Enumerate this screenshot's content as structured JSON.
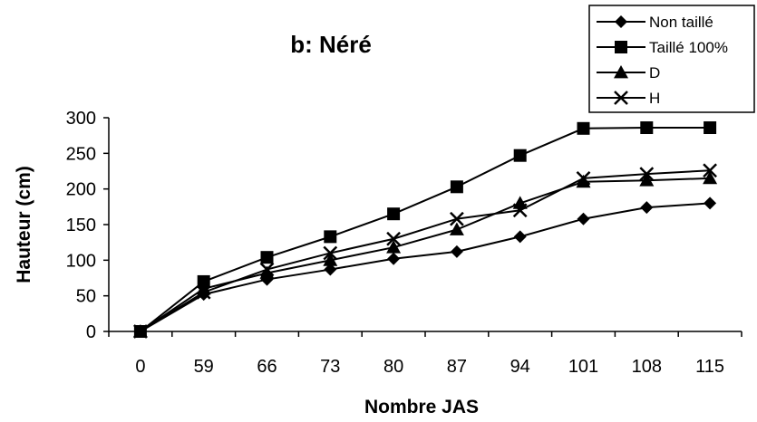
{
  "chart_data": {
    "type": "line",
    "title": "b: Néré",
    "xlabel": "Nombre JAS",
    "ylabel": "Hauteur (cm)",
    "categories": [
      "0",
      "59",
      "66",
      "73",
      "80",
      "87",
      "94",
      "101",
      "108",
      "115"
    ],
    "y_ticks": [
      "0",
      "50",
      "100",
      "150",
      "200",
      "250",
      "300"
    ],
    "ylim": [
      0,
      300
    ],
    "grid": false,
    "legend_position": "top-right",
    "series": [
      {
        "name": "Non taillé",
        "marker": "diamond",
        "values": [
          0,
          52,
          73,
          87,
          102,
          112,
          133,
          158,
          174,
          180
        ]
      },
      {
        "name": "Taillé 100%",
        "marker": "square",
        "values": [
          0,
          70,
          104,
          133,
          165,
          203,
          247,
          285,
          286,
          286
        ]
      },
      {
        "name": "D",
        "marker": "triangle",
        "values": [
          0,
          60,
          82,
          100,
          118,
          143,
          180,
          210,
          212,
          215
        ]
      },
      {
        "name": "H",
        "marker": "x",
        "values": [
          0,
          55,
          87,
          110,
          130,
          158,
          170,
          215,
          221,
          226
        ]
      }
    ],
    "colors": {
      "line": "#000000",
      "background": "#ffffff"
    }
  }
}
